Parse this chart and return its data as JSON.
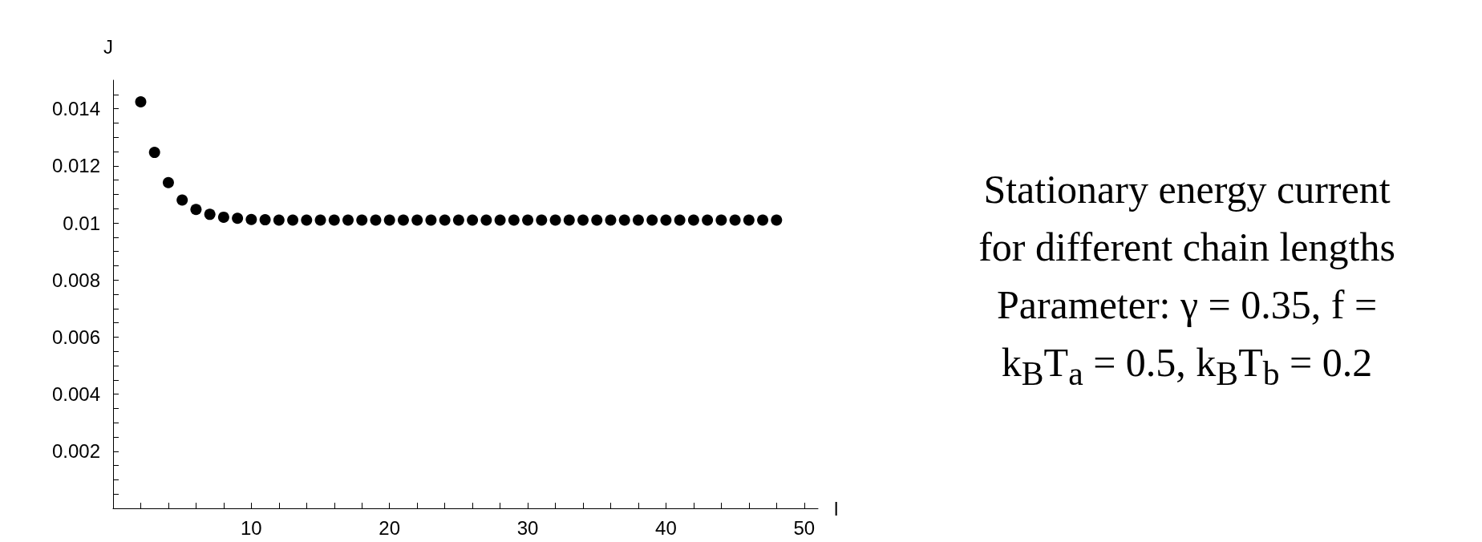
{
  "chart_data": {
    "type": "scatter",
    "xlabel": "l",
    "ylabel": "J",
    "x": [
      2,
      3,
      4,
      5,
      6,
      7,
      8,
      9,
      10,
      11,
      12,
      13,
      14,
      15,
      16,
      17,
      18,
      19,
      20,
      21,
      22,
      23,
      24,
      25,
      26,
      27,
      28,
      29,
      30,
      31,
      32,
      33,
      34,
      35,
      36,
      37,
      38,
      39,
      40,
      41,
      42,
      43,
      44,
      45,
      46,
      47,
      48
    ],
    "series": [
      {
        "color": "#000000",
        "values": [
          0.01424,
          0.01247,
          0.01141,
          0.0108,
          0.01047,
          0.0103,
          0.0102,
          0.01016,
          0.01012,
          0.01011,
          0.0101,
          0.0101,
          0.0101,
          0.0101,
          0.0101,
          0.0101,
          0.0101,
          0.0101,
          0.0101,
          0.0101,
          0.0101,
          0.0101,
          0.0101,
          0.0101,
          0.0101,
          0.0101,
          0.0101,
          0.0101,
          0.0101,
          0.0101,
          0.0101,
          0.0101,
          0.0101,
          0.0101,
          0.0101,
          0.0101,
          0.0101,
          0.0101,
          0.0101,
          0.0101,
          0.0101,
          0.0101,
          0.0101,
          0.0101,
          0.0101,
          0.0101,
          0.0101
        ]
      }
    ],
    "xlim": [
      0,
      51
    ],
    "ylim": [
      0,
      0.015
    ],
    "xticks": [
      {
        "value": 2,
        "label": null
      },
      {
        "value": 4,
        "label": null
      },
      {
        "value": 6,
        "label": null
      },
      {
        "value": 8,
        "label": null
      },
      10,
      {
        "value": 12,
        "label": null
      },
      {
        "value": 14,
        "label": null
      },
      {
        "value": 16,
        "label": null
      },
      {
        "value": 18,
        "label": null
      },
      20,
      {
        "value": 22,
        "label": null
      },
      {
        "value": 24,
        "label": null
      },
      {
        "value": 26,
        "label": null
      },
      {
        "value": 28,
        "label": null
      },
      30,
      {
        "value": 32,
        "label": null
      },
      {
        "value": 34,
        "label": null
      },
      {
        "value": 36,
        "label": null
      },
      {
        "value": 38,
        "label": null
      },
      40,
      {
        "value": 42,
        "label": null
      },
      {
        "value": 44,
        "label": null
      },
      {
        "value": 46,
        "label": null
      },
      {
        "value": 48,
        "label": null
      },
      50
    ],
    "yticks": [
      {
        "value": 0.0005,
        "label": null
      },
      {
        "value": 0.001,
        "label": null
      },
      {
        "value": 0.0015,
        "label": null
      },
      0.002,
      {
        "value": 0.0025,
        "label": null
      },
      {
        "value": 0.003,
        "label": null
      },
      {
        "value": 0.0035,
        "label": null
      },
      0.004,
      {
        "value": 0.0045,
        "label": null
      },
      {
        "value": 0.005,
        "label": null
      },
      {
        "value": 0.0055,
        "label": null
      },
      0.006,
      {
        "value": 0.0065,
        "label": null
      },
      {
        "value": 0.007,
        "label": null
      },
      {
        "value": 0.0075,
        "label": null
      },
      0.008,
      {
        "value": 0.0085,
        "label": null
      },
      {
        "value": 0.009,
        "label": null
      },
      {
        "value": 0.0095,
        "label": null
      },
      0.01,
      {
        "value": 0.0105,
        "label": null
      },
      {
        "value": 0.011,
        "label": null
      },
      {
        "value": 0.0115,
        "label": null
      },
      0.012,
      {
        "value": 0.0125,
        "label": null
      },
      {
        "value": 0.013,
        "label": null
      },
      {
        "value": 0.0135,
        "label": null
      },
      0.014,
      {
        "value": 0.0145,
        "label": null
      }
    ],
    "marker": "circle",
    "grid": false,
    "annotations": [
      "Stationary energy current",
      "for different chain lengths",
      "Parameter: γ = 0.35, f =",
      "k$_{B}$T$_{a}$ = 0.5, k$_{B}$T$_{b}$ = 0.2"
    ]
  }
}
